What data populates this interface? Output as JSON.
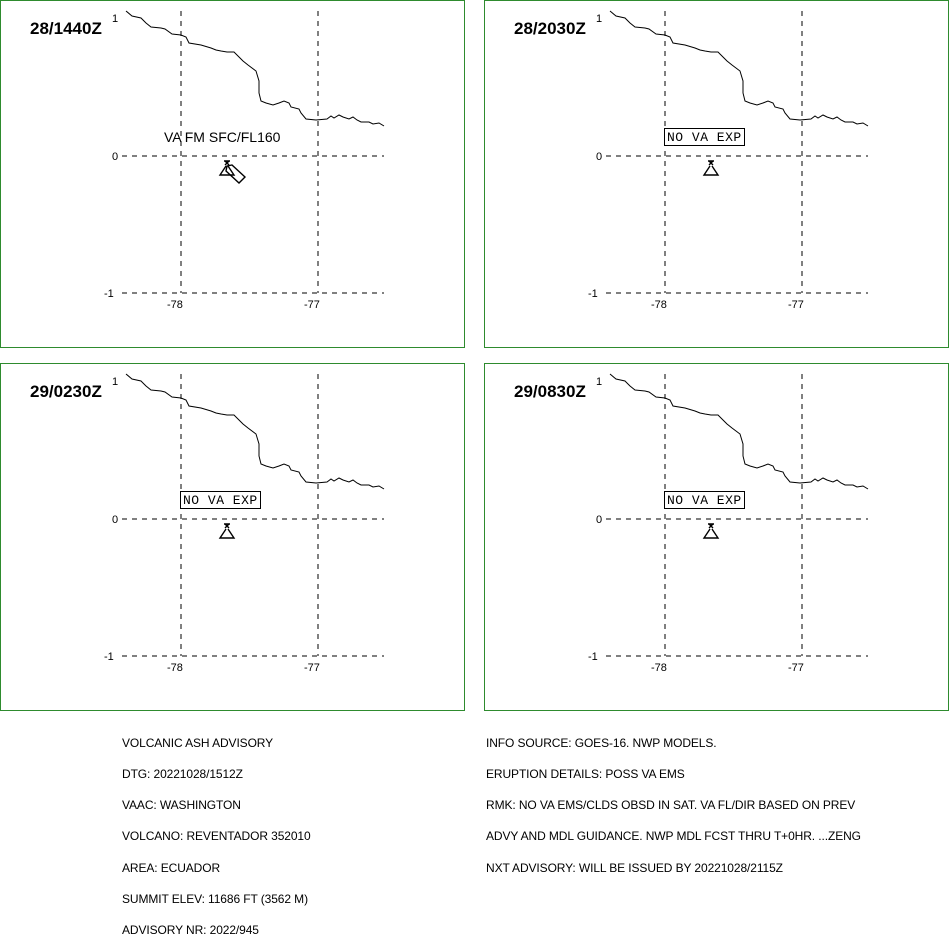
{
  "panels": [
    {
      "time": "28/1440Z",
      "annotation": "VA FM SFC/FL160",
      "annotation_style": "plain"
    },
    {
      "time": "28/2030Z",
      "annotation": "NO VA EXP",
      "annotation_style": "boxed"
    },
    {
      "time": "29/0230Z",
      "annotation": "NO VA EXP",
      "annotation_style": "boxed"
    },
    {
      "time": "29/0830Z",
      "annotation": "NO VA EXP",
      "annotation_style": "boxed"
    }
  ],
  "axes": {
    "lat_labels": [
      "1",
      "0",
      "-1"
    ],
    "lon_labels": [
      "-78",
      "-77"
    ]
  },
  "advisory_left": [
    "VOLCANIC ASH ADVISORY",
    "DTG: 20221028/1512Z",
    "VAAC: WASHINGTON",
    "VOLCANO: REVENTADOR 352010",
    "AREA: ECUADOR",
    "SUMMIT ELEV: 11686 FT (3562 M)",
    "ADVISORY NR: 2022/945"
  ],
  "advisory_right": [
    "INFO SOURCE: GOES-16. NWP MODELS.",
    "ERUPTION DETAILS: POSS VA EMS",
    "RMK: NO VA EMS/CLDS OBSD IN SAT. VA FL/DIR BASED ON PREV",
    "ADVY AND MDL GUIDANCE. NWP MDL FCST THRU T+0HR. ...ZENG",
    "NXT ADVISORY: WILL BE ISSUED BY 20221028/2115Z"
  ],
  "colors": {
    "panel_border": "#2e8b2e",
    "lines": "#000000"
  },
  "icons": {
    "volcano": "volcano-icon",
    "ash_plume": "ash-plume-icon"
  }
}
